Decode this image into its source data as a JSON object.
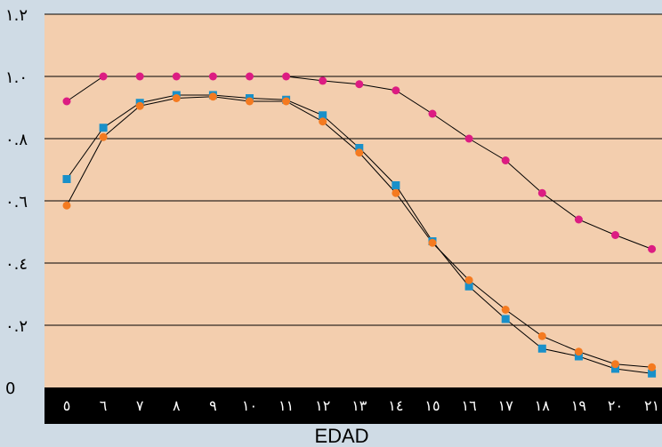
{
  "colors": {
    "page_bg": "#cfdbe5",
    "plot_bg": "#f3ceae",
    "axis_band": "#000000",
    "grid": "#000000",
    "series_pink": "#dc1c82",
    "series_blue": "#1990c9",
    "series_orange": "#f47a20",
    "connector": "#000000"
  },
  "chart_data": {
    "type": "line",
    "title": "",
    "xlabel": "EDAD",
    "ylabel": "",
    "x": [
      5,
      6,
      7,
      8,
      9,
      10,
      11,
      12,
      13,
      14,
      15,
      16,
      17,
      18,
      19,
      20,
      21
    ],
    "x_tick_labels": [
      "٥",
      "٦",
      "٧",
      "٨",
      "٩",
      "١٠",
      "١١",
      "١٢",
      "١٣",
      "١٤",
      "١٥",
      "١٦",
      "١٧",
      "١٨",
      "١٩",
      "٢٠",
      "٢١"
    ],
    "ylim": [
      0,
      1.2
    ],
    "y_ticks": [
      0,
      0.2,
      0.4,
      0.6,
      0.8,
      1.0,
      1.2
    ],
    "y_tick_labels": [
      "0",
      "٠.٢",
      "٠.٤",
      "٠.٦",
      "٠.٨",
      "١.٠",
      "١.٢"
    ],
    "grid": "horizontal",
    "legend": "none",
    "series": [
      {
        "marker": "circle",
        "color": "#dc1c82",
        "values": [
          0.92,
          1.0,
          1.0,
          1.0,
          1.0,
          1.0,
          1.0,
          0.986,
          0.975,
          0.955,
          0.88,
          0.8,
          0.73,
          0.625,
          0.54,
          0.49,
          0.445
        ]
      },
      {
        "marker": "square",
        "color": "#1990c9",
        "values": [
          0.67,
          0.835,
          0.915,
          0.94,
          0.94,
          0.93,
          0.925,
          0.875,
          0.77,
          0.65,
          0.47,
          0.325,
          0.22,
          0.125,
          0.1,
          0.06,
          0.045
        ]
      },
      {
        "marker": "circle",
        "color": "#f47a20",
        "values": [
          0.585,
          0.805,
          0.905,
          0.93,
          0.935,
          0.92,
          0.92,
          0.855,
          0.755,
          0.625,
          0.465,
          0.345,
          0.25,
          0.165,
          0.115,
          0.075,
          0.065
        ]
      }
    ]
  }
}
